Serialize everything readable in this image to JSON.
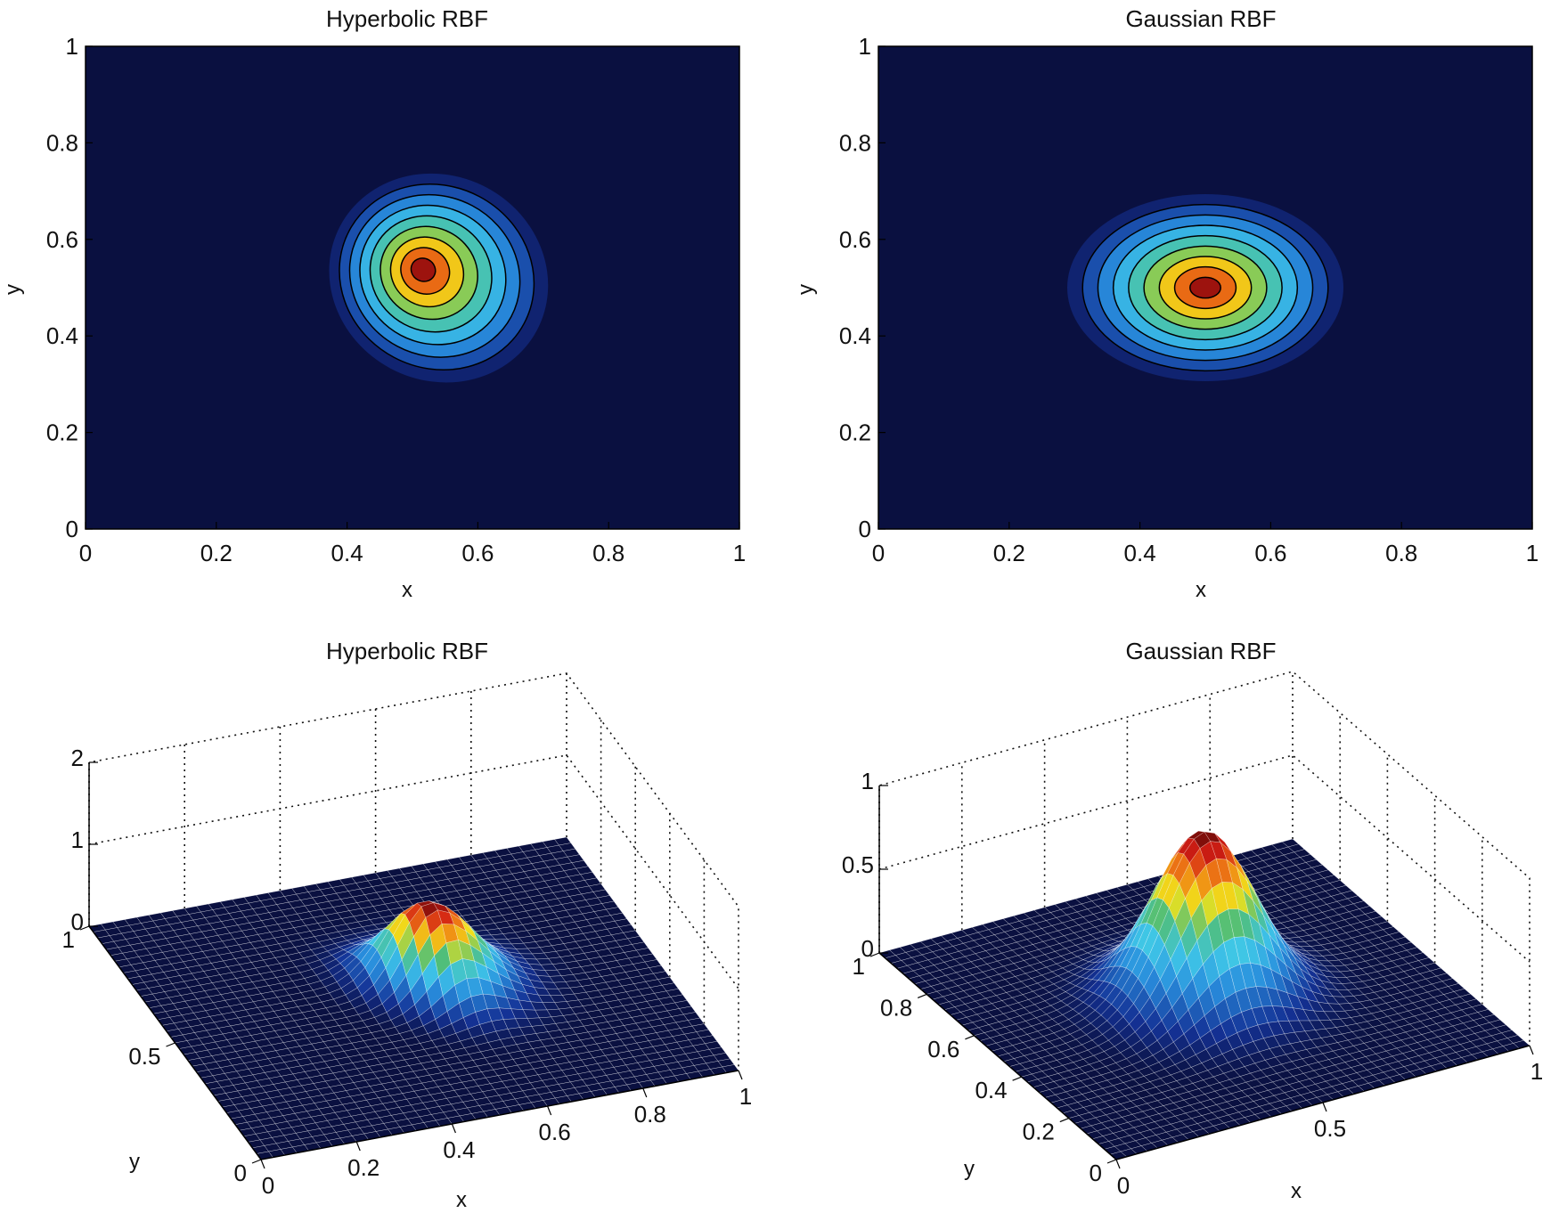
{
  "chart_data": [
    {
      "type": "heatmap",
      "subtype": "filled-contour",
      "title": "Hyperbolic RBF",
      "xlabel": "x",
      "ylabel": "y",
      "xlim": [
        0,
        1
      ],
      "ylim": [
        0,
        1
      ],
      "xticks": [
        "0",
        "0.2",
        "0.4",
        "0.6",
        "0.8",
        "1"
      ],
      "yticks": [
        "0",
        "0.2",
        "0.4",
        "0.6",
        "0.8",
        "1"
      ],
      "peak": {
        "x": 0.54,
        "y": 0.52
      },
      "contour_levels": 8,
      "shape": "skewed"
    },
    {
      "type": "heatmap",
      "subtype": "filled-contour",
      "title": "Gaussian RBF",
      "xlabel": "x",
      "ylabel": "y",
      "xlim": [
        0,
        1
      ],
      "ylim": [
        0,
        1
      ],
      "xticks": [
        "0",
        "0.2",
        "0.4",
        "0.6",
        "0.8",
        "1"
      ],
      "yticks": [
        "0",
        "0.2",
        "0.4",
        "0.6",
        "0.8",
        "1"
      ],
      "peak": {
        "x": 0.5,
        "y": 0.5
      },
      "contour_levels": 8,
      "shape": "symmetric"
    },
    {
      "type": "surface",
      "title": "Hyperbolic RBF",
      "xlabel": "x",
      "ylabel": "y",
      "xticks": [
        "0",
        "0.2",
        "0.4",
        "0.6",
        "0.8",
        "1"
      ],
      "yticks": [
        "0",
        "0.5",
        "1"
      ],
      "zticks": [
        "0",
        "1",
        "2"
      ],
      "zlim": [
        0,
        2
      ],
      "peak_value": 1.05
    },
    {
      "type": "surface",
      "title": "Gaussian RBF",
      "xlabel": "x",
      "ylabel": "y",
      "xticks": [
        "0",
        "0.5",
        "1"
      ],
      "yticks": [
        "0",
        "0.2",
        "0.4",
        "0.6",
        "0.8",
        "1"
      ],
      "zticks": [
        "0",
        "0.5",
        "1"
      ],
      "zlim": [
        0,
        1
      ],
      "peak_value": 1.0
    }
  ],
  "colors": {
    "background": "#0a1040",
    "low": "#0a1040",
    "mid": "#3fc6e8",
    "high": "#f1e21b",
    "peak": "#5a0606",
    "contour_line": "#000000",
    "mesh": "#ffffff"
  }
}
